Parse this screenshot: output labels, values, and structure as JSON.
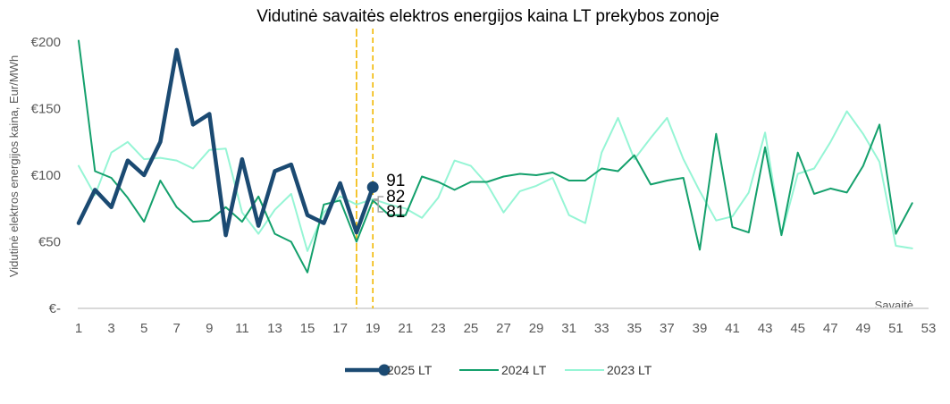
{
  "chart_data": {
    "type": "line",
    "title": "Vidutinė savaitės elektros energijos kaina LT prekybos zonoje",
    "xlabel": "Savaitė",
    "ylabel": "Vidutinė elektros energijos kaina, Eur/MWh",
    "xlim": [
      1,
      53
    ],
    "ylim": [
      0,
      200
    ],
    "x_ticks": [
      1,
      3,
      5,
      7,
      9,
      11,
      13,
      15,
      17,
      19,
      21,
      23,
      25,
      27,
      29,
      31,
      33,
      35,
      37,
      39,
      41,
      43,
      45,
      47,
      49,
      51,
      53
    ],
    "y_ticks": [
      {
        "value": 0,
        "label": "€-"
      },
      {
        "value": 50,
        "label": "€50"
      },
      {
        "value": 100,
        "label": "€100"
      },
      {
        "value": 150,
        "label": "€150"
      },
      {
        "value": 200,
        "label": "€200"
      }
    ],
    "grid": false,
    "legend_position": "bottom",
    "reference_lines": [
      {
        "x": 18,
        "style": "solid",
        "color": "#F2B800"
      },
      {
        "x": 19,
        "style": "dashed",
        "color": "#F2B800"
      }
    ],
    "end_labels": [
      {
        "text": "91",
        "x": 19,
        "y": 91
      },
      {
        "text": "82",
        "x": 19,
        "y": 82
      },
      {
        "text": "81",
        "x": 19,
        "y": 81
      }
    ],
    "series": [
      {
        "name": "2025 LT",
        "color": "#1B4A72",
        "x": [
          1,
          2,
          3,
          4,
          5,
          6,
          7,
          8,
          9,
          10,
          11,
          12,
          13,
          14,
          15,
          16,
          17,
          18,
          19
        ],
        "values": [
          64,
          89,
          76,
          111,
          100,
          125,
          194,
          138,
          146,
          55,
          112,
          62,
          103,
          108,
          70,
          64,
          94,
          57,
          91
        ]
      },
      {
        "name": "2024 LT",
        "color": "#14A06C",
        "x": [
          1,
          2,
          3,
          4,
          5,
          6,
          7,
          8,
          9,
          10,
          11,
          12,
          13,
          14,
          15,
          16,
          17,
          18,
          19,
          20,
          21,
          22,
          23,
          24,
          25,
          26,
          27,
          28,
          29,
          30,
          31,
          32,
          33,
          34,
          35,
          36,
          37,
          38,
          39,
          40,
          41,
          42,
          43,
          44,
          45,
          46,
          47,
          48,
          49,
          50,
          51,
          52
        ],
        "values": [
          201,
          103,
          98,
          83,
          65,
          96,
          76,
          65,
          66,
          76,
          65,
          84,
          56,
          50,
          27,
          78,
          81,
          50,
          81,
          70,
          70,
          99,
          95,
          89,
          95,
          95,
          99,
          101,
          100,
          102,
          96,
          96,
          105,
          103,
          115,
          93,
          96,
          98,
          44,
          131,
          61,
          57,
          121,
          55,
          117,
          86,
          90,
          87,
          107,
          138,
          56,
          79
        ]
      },
      {
        "name": "2023 LT",
        "color": "#96F5D5",
        "x": [
          1,
          2,
          3,
          4,
          5,
          6,
          7,
          8,
          9,
          10,
          11,
          12,
          13,
          14,
          15,
          16,
          17,
          18,
          19,
          20,
          21,
          22,
          23,
          24,
          25,
          26,
          27,
          28,
          29,
          30,
          31,
          32,
          33,
          34,
          35,
          36,
          37,
          38,
          39,
          40,
          41,
          42,
          43,
          44,
          45,
          46,
          47,
          48,
          49,
          50,
          51,
          52
        ],
        "values": [
          107,
          85,
          117,
          125,
          112,
          113,
          111,
          105,
          119,
          120,
          72,
          56,
          74,
          86,
          43,
          72,
          84,
          78,
          82,
          78,
          75,
          68,
          83,
          111,
          107,
          93,
          72,
          88,
          92,
          98,
          70,
          64,
          117,
          143,
          112,
          128,
          143,
          112,
          88,
          66,
          69,
          87,
          132,
          55,
          101,
          105,
          125,
          148,
          131,
          110,
          47,
          45
        ]
      }
    ]
  }
}
